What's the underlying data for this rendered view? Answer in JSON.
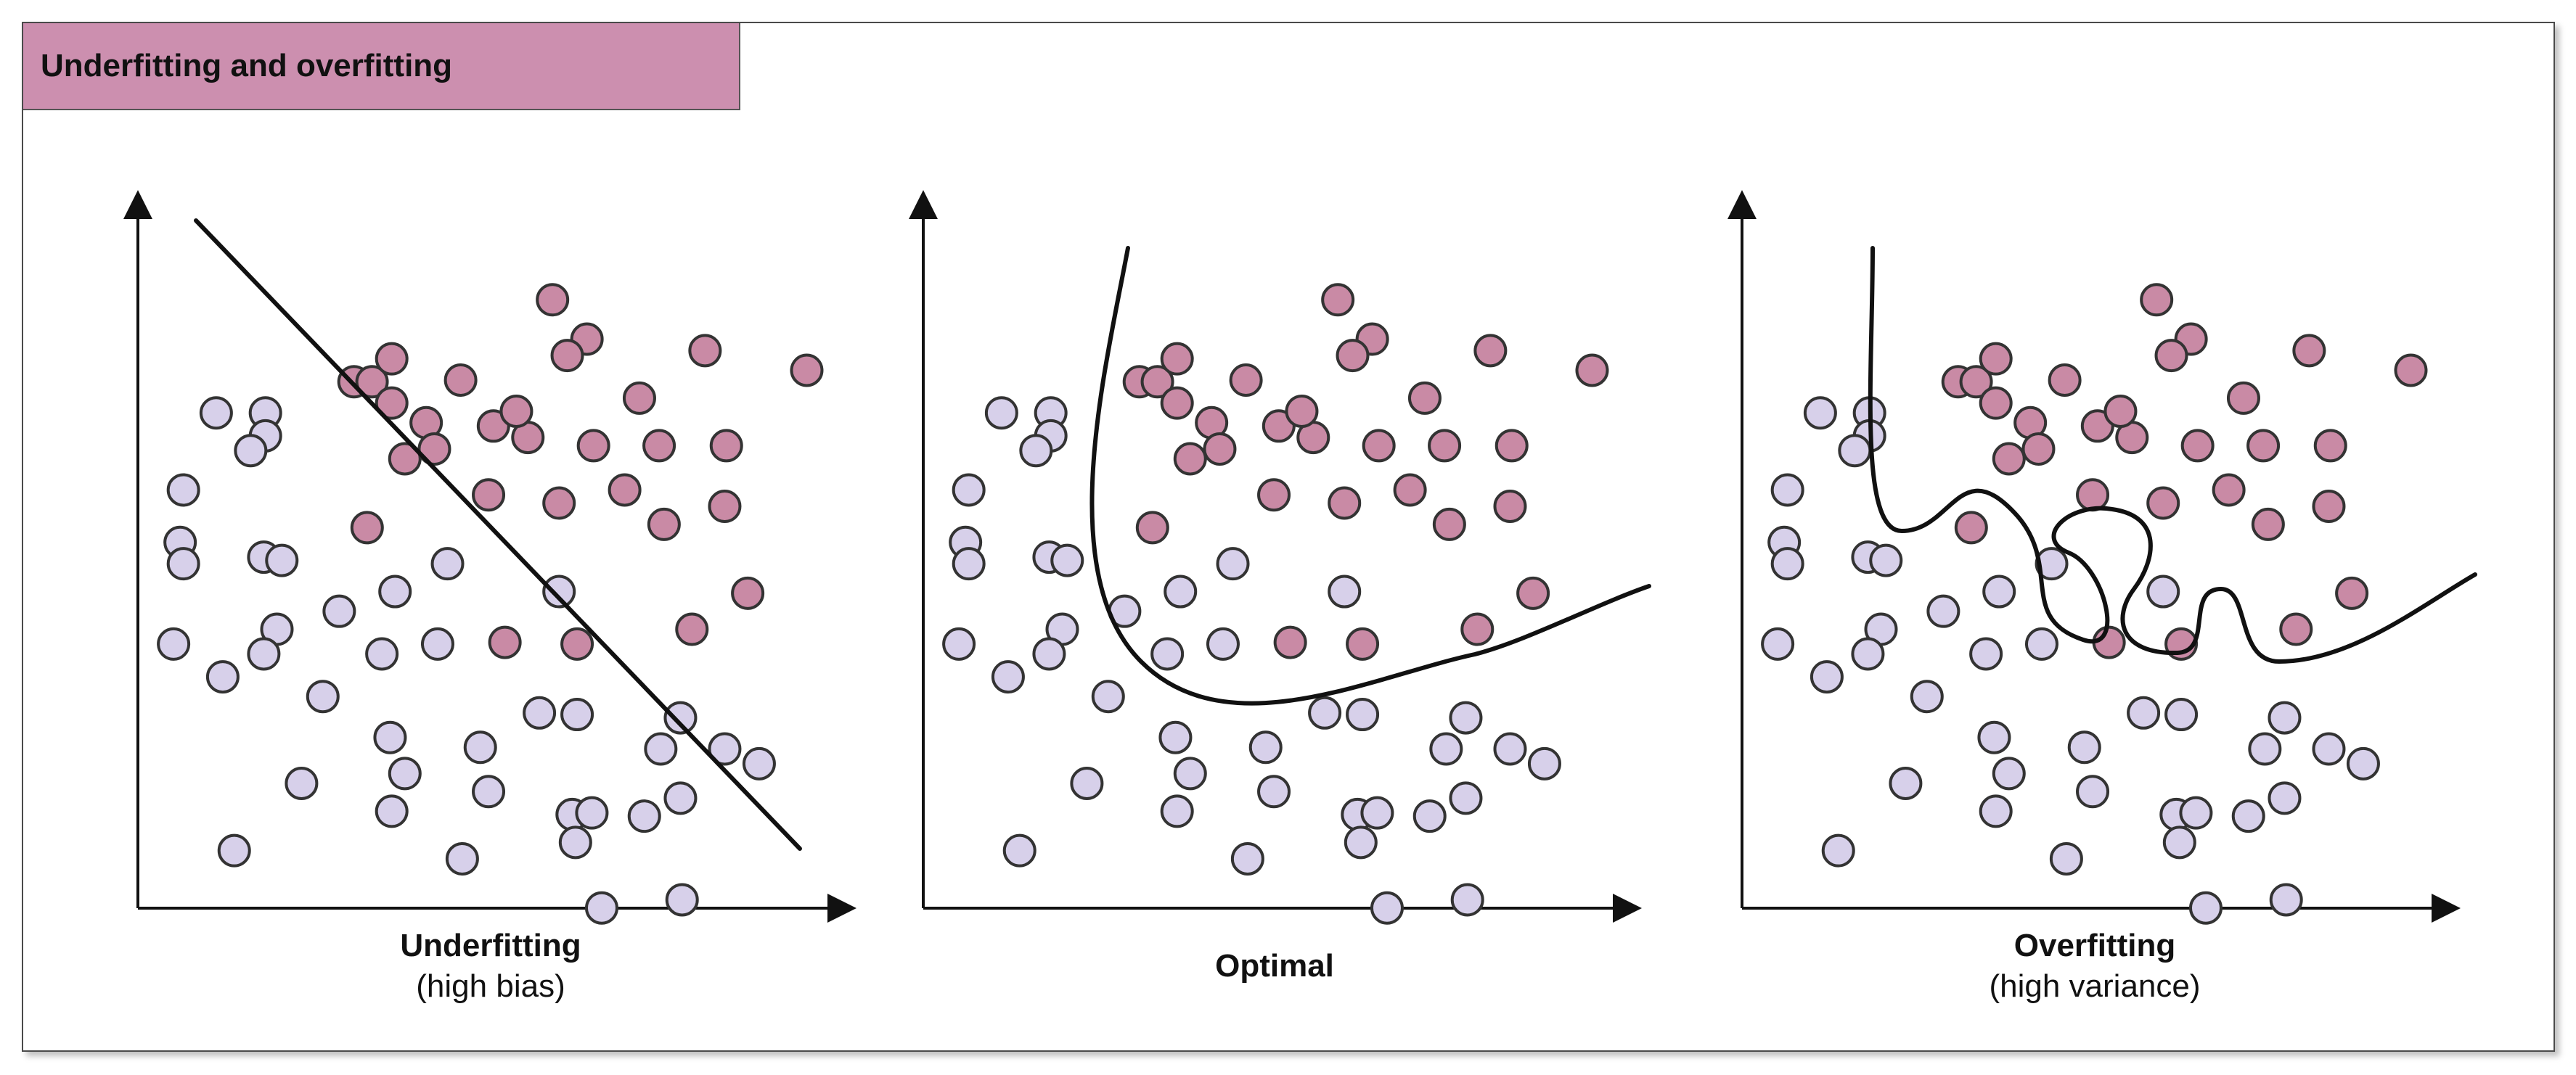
{
  "header": {
    "title": "Underfitting and overfitting",
    "bg_color": "#cc8faf"
  },
  "colors": {
    "pink": "#c98aa5",
    "lavender": "#d7d0ea",
    "stroke": "#333333",
    "curve": "#111111"
  },
  "panels": [
    {
      "id": "underfitting",
      "title": "Underfitting",
      "subtitle": "(high bias)",
      "model": "linear-boundary"
    },
    {
      "id": "optimal",
      "title": "Optimal",
      "subtitle": "",
      "model": "smooth-boundary"
    },
    {
      "id": "overfitting",
      "title": "Overfitting",
      "subtitle": "(high variance)",
      "model": "wiggly-boundary"
    }
  ],
  "points": {
    "pink": [
      [
        243,
        28
      ],
      [
        264,
        52
      ],
      [
        252,
        62
      ],
      [
        336,
        59
      ],
      [
        398,
        71
      ],
      [
        187,
        77
      ],
      [
        122,
        78
      ],
      [
        133,
        78
      ],
      [
        145,
        64
      ],
      [
        145,
        91
      ],
      [
        166,
        103
      ],
      [
        171,
        119
      ],
      [
        153,
        125
      ],
      [
        207,
        105
      ],
      [
        228,
        112
      ],
      [
        221,
        96
      ],
      [
        296,
        88
      ],
      [
        268,
        117
      ],
      [
        308,
        117
      ],
      [
        349,
        117
      ],
      [
        204,
        147
      ],
      [
        247,
        152
      ],
      [
        287,
        144
      ],
      [
        311,
        165
      ],
      [
        348,
        154
      ],
      [
        130,
        167
      ],
      [
        362,
        207
      ],
      [
        328,
        229
      ],
      [
        258,
        238
      ],
      [
        214,
        237
      ]
    ],
    "lavender": [
      [
        38,
        97
      ],
      [
        68,
        97
      ],
      [
        68,
        111
      ],
      [
        59,
        120
      ],
      [
        18,
        144
      ],
      [
        16,
        176
      ],
      [
        18,
        189
      ],
      [
        67,
        185
      ],
      [
        78,
        187
      ],
      [
        179,
        189
      ],
      [
        147,
        206
      ],
      [
        113,
        218
      ],
      [
        75,
        229
      ],
      [
        67,
        244
      ],
      [
        139,
        244
      ],
      [
        173,
        238
      ],
      [
        247,
        206
      ],
      [
        12,
        238
      ],
      [
        42,
        258
      ],
      [
        103,
        270
      ],
      [
        144,
        295
      ],
      [
        153,
        317
      ],
      [
        199,
        301
      ],
      [
        235,
        280
      ],
      [
        258,
        281
      ],
      [
        321,
        283
      ],
      [
        309,
        302
      ],
      [
        348,
        302
      ],
      [
        369,
        311
      ],
      [
        90,
        323
      ],
      [
        204,
        328
      ],
      [
        145,
        340
      ],
      [
        255,
        342
      ],
      [
        267,
        341
      ],
      [
        299,
        343
      ],
      [
        321,
        332
      ],
      [
        257,
        359
      ],
      [
        49,
        364
      ],
      [
        188,
        369
      ],
      [
        273,
        399
      ],
      [
        322,
        394
      ]
    ]
  },
  "axes_note": "",
  "chart_data": {
    "type": "scatter",
    "title": "Underfitting and overfitting",
    "series": [
      {
        "values": "pink class"
      },
      {
        "values": "lavender class"
      }
    ],
    "xlabel": "",
    "ylabel": "",
    "grid": false
  }
}
